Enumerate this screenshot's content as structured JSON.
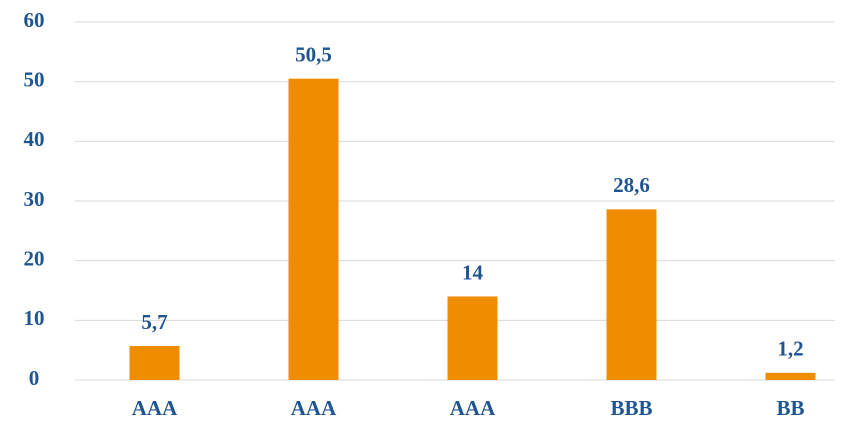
{
  "chart_data": {
    "type": "bar",
    "categories": [
      "AAA",
      "AAA",
      "AAA",
      "BBB",
      "BB"
    ],
    "values": [
      5.7,
      50.5,
      14,
      28.6,
      1.2
    ],
    "value_labels": [
      "5,7",
      "50,5",
      "14",
      "28,6",
      "1,2"
    ],
    "color": "#f08c00",
    "label_color": "#1f5591",
    "ylim": [
      0,
      60
    ],
    "yticks": [
      0,
      10,
      20,
      30,
      40,
      50,
      60
    ],
    "grid": true
  }
}
